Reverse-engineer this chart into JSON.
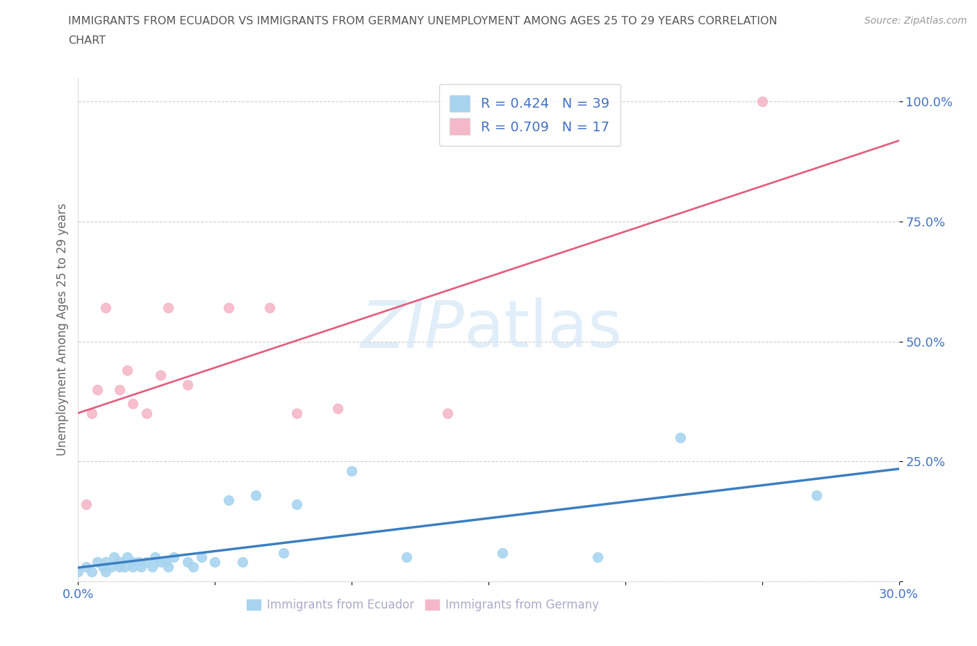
{
  "title_line1": "IMMIGRANTS FROM ECUADOR VS IMMIGRANTS FROM GERMANY UNEMPLOYMENT AMONG AGES 25 TO 29 YEARS CORRELATION",
  "title_line2": "CHART",
  "source": "Source: ZipAtlas.com",
  "ylabel": "Unemployment Among Ages 25 to 29 years",
  "xlim": [
    0.0,
    0.3
  ],
  "ylim": [
    0.0,
    1.05
  ],
  "xticks": [
    0.0,
    0.05,
    0.1,
    0.15,
    0.2,
    0.25,
    0.3
  ],
  "xticklabels": [
    "0.0%",
    "",
    "",
    "",
    "",
    "",
    "30.0%"
  ],
  "yticks": [
    0.0,
    0.25,
    0.5,
    0.75,
    1.0
  ],
  "yticklabels": [
    "",
    "25.0%",
    "50.0%",
    "75.0%",
    "100.0%"
  ],
  "ecuador_color": "#a8d4f0",
  "germany_color": "#f5b8c8",
  "ecuador_line_color": "#3a7fc1",
  "germany_line_color": "#e06080",
  "ecuador_R": 0.424,
  "ecuador_N": 39,
  "germany_R": 0.709,
  "germany_N": 17,
  "ecuador_scatter_x": [
    0.0,
    0.003,
    0.005,
    0.007,
    0.009,
    0.01,
    0.01,
    0.012,
    0.013,
    0.015,
    0.015,
    0.017,
    0.018,
    0.02,
    0.02,
    0.022,
    0.023,
    0.025,
    0.027,
    0.028,
    0.03,
    0.032,
    0.033,
    0.035,
    0.04,
    0.042,
    0.045,
    0.05,
    0.055,
    0.06,
    0.065,
    0.075,
    0.08,
    0.1,
    0.12,
    0.155,
    0.19,
    0.22,
    0.27
  ],
  "ecuador_scatter_y": [
    0.02,
    0.03,
    0.02,
    0.04,
    0.03,
    0.02,
    0.04,
    0.03,
    0.05,
    0.03,
    0.04,
    0.03,
    0.05,
    0.03,
    0.04,
    0.04,
    0.03,
    0.04,
    0.03,
    0.05,
    0.04,
    0.04,
    0.03,
    0.05,
    0.04,
    0.03,
    0.05,
    0.04,
    0.17,
    0.04,
    0.18,
    0.06,
    0.16,
    0.23,
    0.05,
    0.06,
    0.05,
    0.3,
    0.18
  ],
  "germany_scatter_x": [
    0.003,
    0.005,
    0.007,
    0.01,
    0.015,
    0.018,
    0.02,
    0.025,
    0.03,
    0.033,
    0.04,
    0.055,
    0.07,
    0.08,
    0.095,
    0.135,
    0.25
  ],
  "germany_scatter_y": [
    0.16,
    0.35,
    0.4,
    0.57,
    0.4,
    0.44,
    0.37,
    0.35,
    0.43,
    0.57,
    0.41,
    0.57,
    0.57,
    0.35,
    0.36,
    0.35,
    1.0
  ],
  "watermark_zip": "ZIP",
  "watermark_atlas": "atlas",
  "background_color": "#ffffff",
  "grid_color": "#cccccc",
  "title_color": "#555555",
  "axis_label_color": "#666666",
  "tick_label_color": "#4472c4",
  "legend_value_color": "#4472c4",
  "bottom_legend_color": "#aaaacc"
}
